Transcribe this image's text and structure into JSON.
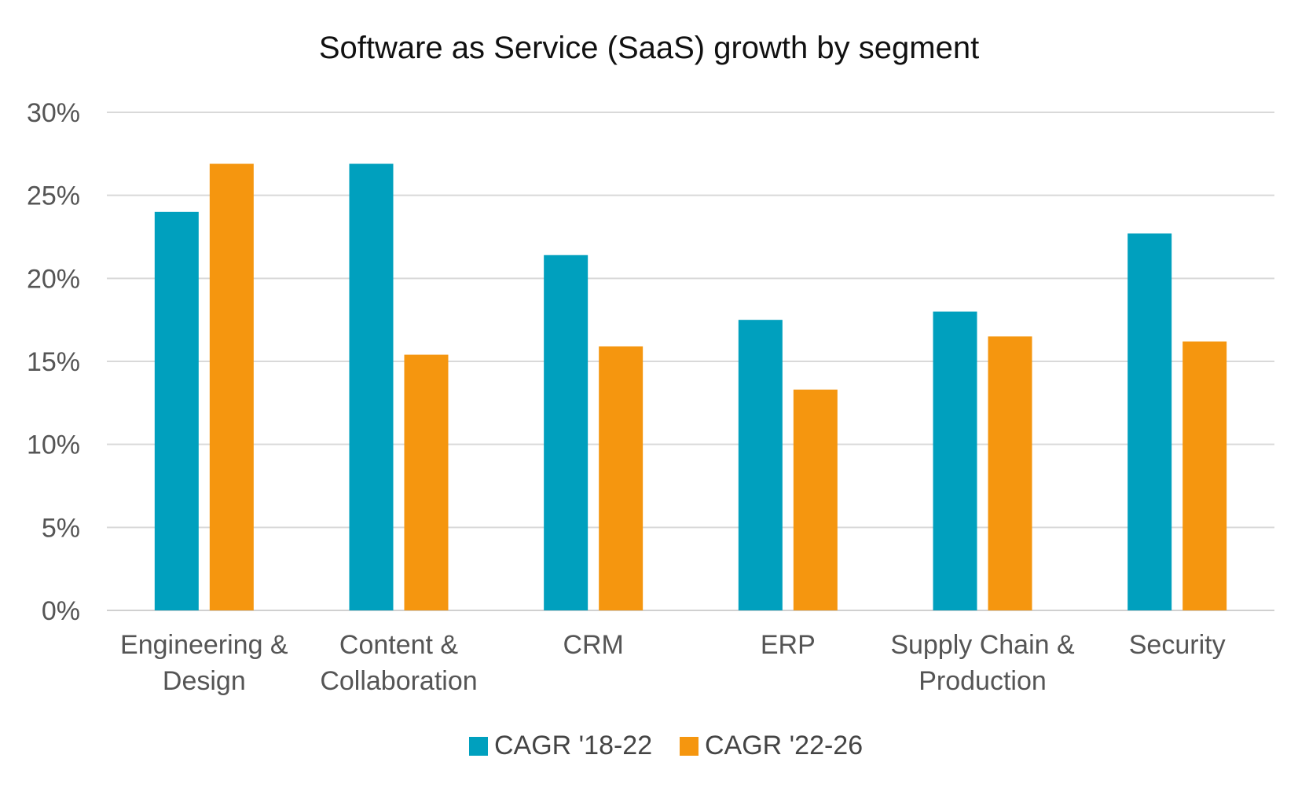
{
  "chart_data": {
    "type": "bar",
    "title": "Software as Service (SaaS) growth by segment",
    "xlabel": "",
    "ylabel": "",
    "categories": [
      [
        "Engineering &",
        "Design"
      ],
      [
        "Content &",
        "Collaboration"
      ],
      [
        "CRM"
      ],
      [
        "ERP"
      ],
      [
        "Supply Chain &",
        "Production"
      ],
      [
        "Security"
      ]
    ],
    "series": [
      {
        "name": "CAGR '18-22",
        "color": "#00a0be",
        "values": [
          24.0,
          26.9,
          21.4,
          17.5,
          18.0,
          22.7
        ]
      },
      {
        "name": "CAGR '22-26",
        "color": "#f5960f",
        "values": [
          26.9,
          15.4,
          15.9,
          13.3,
          16.5,
          16.2
        ]
      }
    ],
    "ylim": [
      0,
      30
    ],
    "yticks": [
      0,
      5,
      10,
      15,
      20,
      25,
      30
    ],
    "ytick_labels": [
      "0%",
      "5%",
      "10%",
      "15%",
      "20%",
      "25%",
      "30%"
    ],
    "grid": true,
    "legend_position": "bottom"
  }
}
